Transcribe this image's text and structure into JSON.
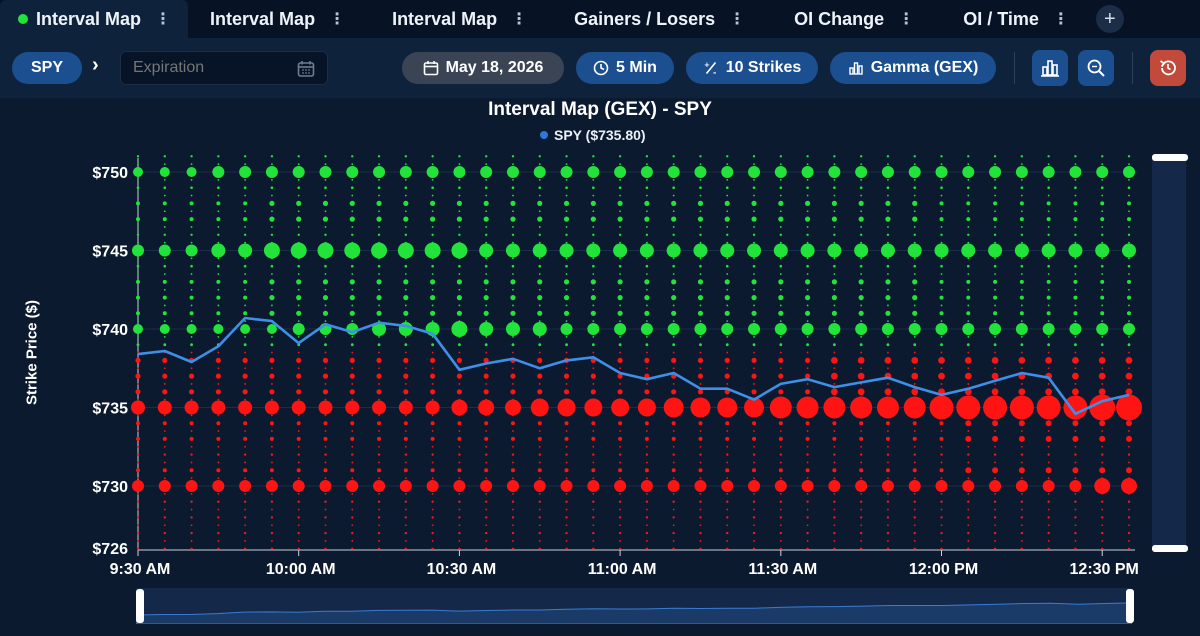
{
  "tabs": [
    {
      "label": "Interval Map",
      "active": true
    },
    {
      "label": "Interval Map",
      "active": false
    },
    {
      "label": "Interval Map",
      "active": false
    },
    {
      "label": "Gainers / Losers",
      "active": false
    },
    {
      "label": "OI Change",
      "active": false
    },
    {
      "label": "OI / Time",
      "active": false
    }
  ],
  "tab_add_label": "+",
  "toolbar": {
    "ticker": "SPY",
    "expiration_placeholder": "Expiration",
    "date": "May 18, 2026",
    "interval": "5 Min",
    "strikes": "10 Strikes",
    "metric": "Gamma (GEX)"
  },
  "colors": {
    "positive": "#22e33a",
    "negative": "#ff1414",
    "price_line": "#3d8fe8",
    "background": "#0b1a2e"
  },
  "chart_data": {
    "type": "scatter",
    "title": "Interval Map (GEX) - SPY",
    "legend": [
      {
        "name": "SPY ($735.80)",
        "color": "#2a79d6"
      }
    ],
    "ylabel": "Strike Price ($)",
    "y_ticks": [
      "$750",
      "$745",
      "$740",
      "$735",
      "$730",
      "$726"
    ],
    "x_ticks": [
      "9:30 AM",
      "10:00 AM",
      "10:30 AM",
      "11:00 AM",
      "11:30 AM",
      "12:00 PM",
      "12:30 PM"
    ],
    "ylim": [
      726,
      751
    ],
    "strikes_major": [
      750,
      745,
      740,
      735,
      730
    ],
    "strike_range": [
      726,
      751
    ],
    "interval_minutes": 5,
    "n_intervals": 38,
    "price_series": [
      738.4,
      738.6,
      737.9,
      738.9,
      740.7,
      740.5,
      739.1,
      740.3,
      739.8,
      740.4,
      740.2,
      739.7,
      737.4,
      737.8,
      738.1,
      737.5,
      738.0,
      738.2,
      737.2,
      736.8,
      737.2,
      736.2,
      736.2,
      735.5,
      736.5,
      736.8,
      736.3,
      736.6,
      736.9,
      736.3,
      735.8,
      736.2,
      736.7,
      737.2,
      736.9,
      734.6,
      735.4,
      735.8
    ],
    "gex_740_sizes": [
      5,
      5,
      5,
      5,
      5,
      5,
      6,
      6,
      6,
      7,
      7,
      7,
      8,
      7,
      7,
      7,
      6,
      6,
      6,
      6,
      6,
      6,
      6,
      6,
      6,
      6,
      6,
      6,
      6,
      6,
      6,
      6,
      6,
      6,
      6,
      6,
      6,
      6
    ],
    "gex_745_sizes": [
      6,
      6,
      6,
      7,
      7,
      8,
      8,
      8,
      8,
      8,
      8,
      8,
      8,
      7,
      7,
      7,
      7,
      7,
      7,
      7,
      7,
      7,
      7,
      7,
      7,
      7,
      7,
      7,
      7,
      7,
      7,
      7,
      7,
      7,
      7,
      7,
      7,
      7
    ],
    "gex_750_sizes": [
      5,
      5,
      5,
      6,
      6,
      6,
      6,
      6,
      6,
      6,
      6,
      6,
      6,
      6,
      6,
      6,
      6,
      6,
      6,
      6,
      6,
      6,
      6,
      6,
      6,
      6,
      6,
      6,
      6,
      6,
      6,
      6,
      6,
      6,
      6,
      6,
      6,
      6
    ],
    "gex_735_sizes": [
      7,
      7,
      7,
      7,
      7,
      7,
      7,
      7,
      7,
      7,
      7,
      7,
      8,
      8,
      8,
      9,
      9,
      9,
      9,
      9,
      10,
      10,
      10,
      10,
      11,
      11,
      11,
      11,
      11,
      11,
      12,
      12,
      12,
      12,
      12,
      12,
      13,
      13
    ],
    "gex_730_sizes": [
      6,
      6,
      6,
      6,
      6,
      6,
      6,
      6,
      6,
      6,
      6,
      6,
      6,
      6,
      6,
      6,
      6,
      6,
      6,
      6,
      6,
      6,
      6,
      6,
      6,
      6,
      6,
      6,
      6,
      6,
      6,
      6,
      6,
      6,
      6,
      6,
      8,
      8
    ]
  }
}
